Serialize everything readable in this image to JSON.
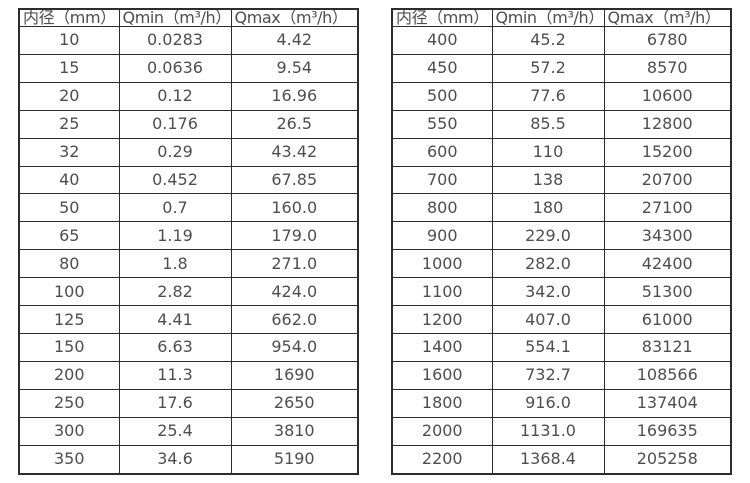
{
  "colors": {
    "background": "#ffffff",
    "table_border": "#2d2d2d",
    "text": "#4e4e4e"
  },
  "tables": [
    {
      "name": "small-diameter-flow-table",
      "headers": [
        "内径（mm）",
        "Qmin（m³/h）",
        "Qmax（m³/h）"
      ],
      "rows": [
        [
          "10",
          "0.0283",
          "4.42"
        ],
        [
          "15",
          "0.0636",
          "9.54"
        ],
        [
          "20",
          "0.12",
          "16.96"
        ],
        [
          "25",
          "0.176",
          "26.5"
        ],
        [
          "32",
          "0.29",
          "43.42"
        ],
        [
          "40",
          "0.452",
          "67.85"
        ],
        [
          "50",
          "0.7",
          "160.0"
        ],
        [
          "65",
          "1.19",
          "179.0"
        ],
        [
          "80",
          "1.8",
          "271.0"
        ],
        [
          "100",
          "2.82",
          "424.0"
        ],
        [
          "125",
          "4.41",
          "662.0"
        ],
        [
          "150",
          "6.63",
          "954.0"
        ],
        [
          "200",
          "11.3",
          "1690"
        ],
        [
          "250",
          "17.6",
          "2650"
        ],
        [
          "300",
          "25.4",
          "3810"
        ],
        [
          "350",
          "34.6",
          "5190"
        ]
      ]
    },
    {
      "name": "large-diameter-flow-table",
      "headers": [
        "内径（mm）",
        "Qmin（m³/h）",
        "Qmax（m³/h）"
      ],
      "rows": [
        [
          "400",
          "45.2",
          "6780"
        ],
        [
          "450",
          "57.2",
          "8570"
        ],
        [
          "500",
          "77.6",
          "10600"
        ],
        [
          "550",
          "85.5",
          "12800"
        ],
        [
          "600",
          "110",
          "15200"
        ],
        [
          "700",
          "138",
          "20700"
        ],
        [
          "800",
          "180",
          "27100"
        ],
        [
          "900",
          "229.0",
          "34300"
        ],
        [
          "1000",
          "282.0",
          "42400"
        ],
        [
          "1100",
          "342.0",
          "51300"
        ],
        [
          "1200",
          "407.0",
          "61000"
        ],
        [
          "1400",
          "554.1",
          "83121"
        ],
        [
          "1600",
          "732.7",
          "108566"
        ],
        [
          "1800",
          "916.0",
          "137404"
        ],
        [
          "2000",
          "1131.0",
          "169635"
        ],
        [
          "2200",
          "1368.4",
          "205258"
        ]
      ]
    }
  ]
}
